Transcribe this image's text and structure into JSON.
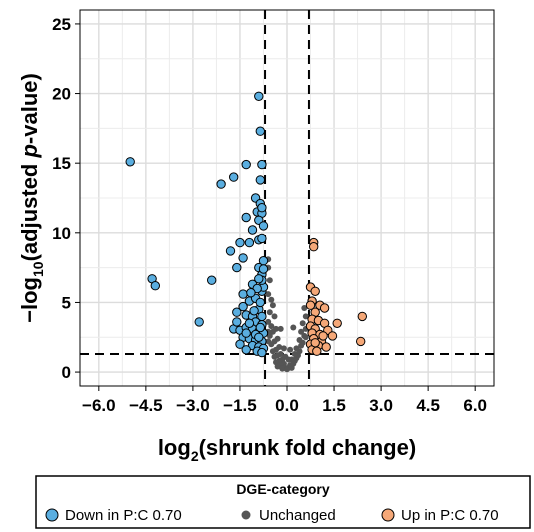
{
  "chart_data": {
    "type": "scatter",
    "title": "",
    "xlabel": {
      "base": "log",
      "sub": "2",
      "rest": "(shrunk fold change)"
    },
    "ylabel": {
      "pre": "−log",
      "sub": "10",
      "mid": "(adjusted ",
      "italic": "p",
      "post": "-value)"
    },
    "xlim": [
      -6.6,
      6.6
    ],
    "ylim": [
      -1.0,
      26.0
    ],
    "x_ticks": [
      "−6.0",
      "−4.5",
      "−3.0",
      "−1.5",
      "0.0",
      "1.5",
      "3.0",
      "4.5",
      "6.0"
    ],
    "x_tick_values": [
      -6.0,
      -4.5,
      -3.0,
      -1.5,
      0.0,
      1.5,
      3.0,
      4.5,
      6.0
    ],
    "y_ticks": [
      "0",
      "5",
      "10",
      "15",
      "20",
      "25"
    ],
    "y_tick_values": [
      0,
      5,
      10,
      15,
      20,
      25
    ],
    "grid": true,
    "thresholds": {
      "fold_change": [
        -0.7,
        0.7
      ],
      "neg_log10_padj": 1.3
    },
    "legend": {
      "title": "DGE-category",
      "position": "bottom",
      "entries": [
        {
          "label": "Down in P:C 0.70",
          "color": "#5AAEE0"
        },
        {
          "label": "Unchanged",
          "color": "#555555"
        },
        {
          "label": "Up in P:C 0.70",
          "color": "#F5A878"
        }
      ]
    },
    "series": [
      {
        "name": "Down in P:C 0.70",
        "color": "#5AAEE0",
        "points": [
          [
            -5.0,
            15.1
          ],
          [
            -4.3,
            6.7
          ],
          [
            -4.2,
            6.2
          ],
          [
            -2.8,
            3.6
          ],
          [
            -2.4,
            6.6
          ],
          [
            -2.1,
            13.5
          ],
          [
            -1.8,
            8.7
          ],
          [
            -1.7,
            14.0
          ],
          [
            -1.6,
            7.5
          ],
          [
            -1.5,
            9.3
          ],
          [
            -1.4,
            8.2
          ],
          [
            -1.4,
            5.6
          ],
          [
            -1.3,
            11.1
          ],
          [
            -1.3,
            14.9
          ],
          [
            -1.1,
            6.3
          ],
          [
            -1.1,
            10.2
          ],
          [
            -1.0,
            12.5
          ],
          [
            -0.9,
            19.8
          ],
          [
            -0.85,
            17.3
          ],
          [
            -0.8,
            14.9
          ],
          [
            -0.85,
            13.8
          ],
          [
            -0.95,
            11.5
          ],
          [
            -0.8,
            11.4
          ],
          [
            -0.9,
            10.9
          ],
          [
            -0.75,
            10.5
          ],
          [
            -0.9,
            9.5
          ],
          [
            -0.8,
            9.6
          ],
          [
            -1.2,
            9.3
          ],
          [
            -0.85,
            12.1
          ],
          [
            -0.8,
            11.8
          ],
          [
            -0.75,
            8.0
          ],
          [
            -0.9,
            7.5
          ],
          [
            -0.8,
            7.0
          ],
          [
            -1.2,
            5.1
          ],
          [
            -1.0,
            5.3
          ],
          [
            -0.8,
            5.8
          ],
          [
            -0.75,
            6.1
          ],
          [
            -1.4,
            4.7
          ],
          [
            -1.6,
            4.3
          ],
          [
            -1.3,
            4.1
          ],
          [
            -1.1,
            4.0
          ],
          [
            -0.9,
            4.5
          ],
          [
            -0.8,
            4.0
          ],
          [
            -1.0,
            3.6
          ],
          [
            -0.8,
            3.4
          ],
          [
            -1.7,
            3.1
          ],
          [
            -1.5,
            3.0
          ],
          [
            -1.3,
            3.2
          ],
          [
            -1.1,
            3.1
          ],
          [
            -0.9,
            2.9
          ],
          [
            -0.75,
            2.8
          ],
          [
            -1.4,
            2.5
          ],
          [
            -1.2,
            2.4
          ],
          [
            -1.0,
            2.3
          ],
          [
            -0.8,
            2.2
          ],
          [
            -1.5,
            2.0
          ],
          [
            -1.1,
            1.9
          ],
          [
            -0.9,
            1.8
          ],
          [
            -0.75,
            1.7
          ],
          [
            -1.3,
            1.6
          ],
          [
            -0.95,
            1.5
          ],
          [
            -0.8,
            1.4
          ],
          [
            -1.6,
            3.6
          ],
          [
            -1.2,
            3.5
          ],
          [
            -1.0,
            2.7
          ],
          [
            -1.3,
            2.8
          ],
          [
            -0.85,
            5.0
          ],
          [
            -0.95,
            6.0
          ],
          [
            -1.05,
            4.4
          ],
          [
            -0.8,
            6.6
          ],
          [
            -0.9,
            6.7
          ],
          [
            -0.75,
            7.4
          ],
          [
            -1.15,
            5.7
          ],
          [
            -0.85,
            3.2
          ],
          [
            -0.9,
            2.5
          ]
        ]
      },
      {
        "name": "Unchanged",
        "color": "#555555",
        "points": [
          [
            -0.6,
            8.1
          ],
          [
            -0.6,
            7.5
          ],
          [
            -0.55,
            6.6
          ],
          [
            -0.5,
            5.2
          ],
          [
            -0.6,
            5.6
          ],
          [
            -0.45,
            4.8
          ],
          [
            -0.55,
            4.3
          ],
          [
            -0.4,
            4.0
          ],
          [
            -0.6,
            3.6
          ],
          [
            -0.5,
            3.3
          ],
          [
            -0.35,
            3.1
          ],
          [
            -0.45,
            2.9
          ],
          [
            -0.55,
            2.6
          ],
          [
            -0.3,
            2.4
          ],
          [
            -0.4,
            2.2
          ],
          [
            -0.5,
            2.0
          ],
          [
            -0.25,
            1.8
          ],
          [
            -0.35,
            1.6
          ],
          [
            -0.45,
            1.5
          ],
          [
            -0.2,
            1.3
          ],
          [
            -0.3,
            1.2
          ],
          [
            -0.4,
            1.1
          ],
          [
            -0.15,
            0.9
          ],
          [
            -0.25,
            0.8
          ],
          [
            -0.35,
            0.7
          ],
          [
            -0.1,
            0.6
          ],
          [
            -0.2,
            0.5
          ],
          [
            -0.3,
            0.4
          ],
          [
            -0.05,
            0.3
          ],
          [
            -0.15,
            0.25
          ],
          [
            0.0,
            0.2
          ],
          [
            0.05,
            0.3
          ],
          [
            0.15,
            0.3
          ],
          [
            0.1,
            0.5
          ],
          [
            0.2,
            0.6
          ],
          [
            0.25,
            0.8
          ],
          [
            0.15,
            0.9
          ],
          [
            0.3,
            1.0
          ],
          [
            0.35,
            1.2
          ],
          [
            0.25,
            1.3
          ],
          [
            0.4,
            1.5
          ],
          [
            0.3,
            1.7
          ],
          [
            0.45,
            1.9
          ],
          [
            0.5,
            2.1
          ],
          [
            0.4,
            2.3
          ],
          [
            0.55,
            2.6
          ],
          [
            0.45,
            2.9
          ],
          [
            0.6,
            3.1
          ],
          [
            0.5,
            3.5
          ],
          [
            0.6,
            4.0
          ],
          [
            0.55,
            4.6
          ],
          [
            0.2,
            3.2
          ],
          [
            0.1,
            1.6
          ],
          [
            -0.1,
            1.7
          ],
          [
            -0.2,
            3.1
          ],
          [
            -0.05,
            1.1
          ],
          [
            0.05,
            0.9
          ],
          [
            -0.6,
            2.9
          ],
          [
            -0.6,
            2.2
          ],
          [
            0.6,
            2.5
          ]
        ]
      },
      {
        "name": "Up in P:C 0.70",
        "color": "#F5A878",
        "points": [
          [
            0.85,
            9.3
          ],
          [
            0.85,
            9.0
          ],
          [
            0.75,
            6.1
          ],
          [
            0.9,
            5.8
          ],
          [
            0.8,
            5.1
          ],
          [
            0.75,
            4.8
          ],
          [
            1.05,
            4.8
          ],
          [
            1.2,
            4.6
          ],
          [
            0.9,
            4.3
          ],
          [
            0.8,
            3.8
          ],
          [
            1.0,
            3.7
          ],
          [
            1.2,
            3.5
          ],
          [
            1.6,
            3.5
          ],
          [
            0.75,
            3.3
          ],
          [
            0.9,
            3.1
          ],
          [
            1.3,
            3.0
          ],
          [
            0.8,
            2.8
          ],
          [
            1.05,
            2.7
          ],
          [
            1.45,
            2.6
          ],
          [
            0.85,
            2.4
          ],
          [
            1.1,
            2.2
          ],
          [
            0.75,
            2.0
          ],
          [
            1.0,
            1.9
          ],
          [
            1.25,
            1.8
          ],
          [
            0.8,
            1.6
          ],
          [
            0.95,
            1.5
          ],
          [
            2.4,
            4.0
          ],
          [
            2.35,
            2.2
          ],
          [
            1.15,
            2.6
          ],
          [
            0.9,
            2.1
          ]
        ]
      }
    ]
  }
}
